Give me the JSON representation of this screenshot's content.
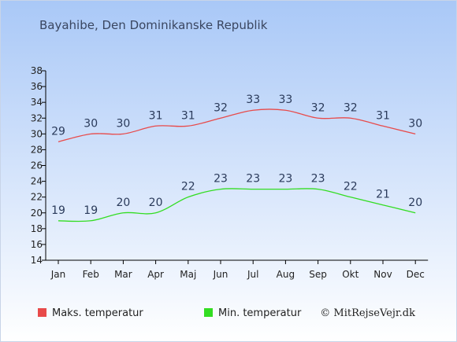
{
  "page": {
    "title": "Bayahibe, Den Dominikanske Republik"
  },
  "chart_data": {
    "type": "line",
    "title": "Bayahibe, Den Dominikanske Republik",
    "categories": [
      "Jan",
      "Feb",
      "Mar",
      "Apr",
      "Maj",
      "Jun",
      "Jul",
      "Aug",
      "Sep",
      "Okt",
      "Nov",
      "Dec"
    ],
    "series": [
      {
        "name": "Maks. temperatur",
        "values": [
          29,
          30,
          30,
          31,
          31,
          32,
          33,
          33,
          32,
          32,
          31,
          30
        ],
        "color": "#e84a4a"
      },
      {
        "name": "Min. temperatur",
        "values": [
          19,
          19,
          20,
          20,
          22,
          23,
          23,
          23,
          23,
          22,
          21,
          20
        ],
        "color": "#33dd22"
      }
    ],
    "ylim": [
      14,
      38
    ],
    "yticks": [
      14,
      16,
      18,
      20,
      22,
      24,
      26,
      28,
      30,
      32,
      34,
      36,
      38
    ],
    "grid": false,
    "legend_position": "bottom-left"
  },
  "credit": "© MitRejseVejr.dk",
  "colors": {
    "bg_top": "#a9c8f7",
    "bg_bottom": "#ffffff",
    "label": "#2a3a5a",
    "axis": "#000000"
  }
}
